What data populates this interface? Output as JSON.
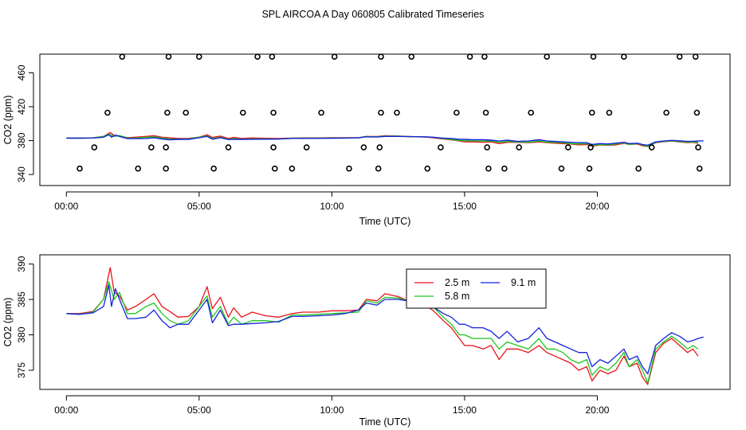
{
  "figure_title": "SPL AIRCOA A  Day 060805  Calibrated Timeseries",
  "chart_data": [
    {
      "type": "line",
      "panel": "top",
      "xlabel": "Time (UTC)",
      "ylabel": "CO2 (ppm)",
      "xlim": [
        -1,
        25
      ],
      "ylim": [
        327,
        482
      ],
      "xticks": [
        {
          "v": 0,
          "label": "00:00"
        },
        {
          "v": 5,
          "label": "05:00"
        },
        {
          "v": 10,
          "label": "10:00"
        },
        {
          "v": 15,
          "label": "15:00"
        },
        {
          "v": 20,
          "label": "20:00"
        }
      ],
      "yticks": [
        {
          "v": 340,
          "label": "340"
        },
        {
          "v": 380,
          "label": "380"
        },
        {
          "v": 420,
          "label": "420"
        },
        {
          "v": 460,
          "label": "460"
        }
      ],
      "points": {
        "marker": "open-circle",
        "x": [
          2.1,
          3.85,
          5.0,
          7.2,
          7.75,
          10.1,
          11.85,
          13.0,
          15.2,
          15.75,
          18.1,
          19.85,
          21.0,
          23.1,
          23.7,
          1.55,
          3.8,
          4.5,
          6.65,
          7.8,
          9.6,
          11.85,
          12.45,
          14.7,
          15.8,
          17.5,
          19.8,
          20.45,
          22.6,
          23.75,
          1.05,
          3.2,
          3.75,
          6.1,
          7.8,
          9.05,
          11.2,
          11.8,
          14.1,
          15.85,
          17.05,
          18.9,
          19.75,
          22.05,
          23.8,
          0.5,
          2.7,
          3.75,
          5.55,
          7.85,
          8.5,
          10.65,
          11.75,
          13.6,
          15.9,
          16.5,
          18.65,
          19.7,
          21.55,
          23.85
        ],
        "y": [
          479,
          479,
          479,
          479,
          479,
          479,
          479,
          479,
          479,
          479,
          479,
          479,
          479,
          479,
          479,
          413,
          413,
          413,
          413,
          413,
          413,
          413,
          413,
          413,
          413,
          413,
          413,
          413,
          413,
          413,
          372,
          372,
          372,
          372,
          372,
          372,
          372,
          372,
          372,
          372,
          372,
          372,
          372,
          372,
          372,
          347,
          347,
          347,
          347,
          347,
          347,
          347,
          347,
          347,
          347,
          347,
          347,
          347,
          347,
          347
        ]
      },
      "series_ref": "same series as bottom panel"
    },
    {
      "type": "line",
      "panel": "bottom",
      "xlabel": "Time (UTC)",
      "ylabel": "CO2 (ppm)",
      "xlim": [
        -1,
        25
      ],
      "ylim": [
        372.3,
        391.3
      ],
      "xticks": [
        {
          "v": 0,
          "label": "00:00"
        },
        {
          "v": 5,
          "label": "05:00"
        },
        {
          "v": 10,
          "label": "10:00"
        },
        {
          "v": 15,
          "label": "15:00"
        },
        {
          "v": 20,
          "label": "20:00"
        }
      ],
      "yticks": [
        {
          "v": 375,
          "label": "375"
        },
        {
          "v": 380,
          "label": "380"
        },
        {
          "v": 385,
          "label": "385"
        },
        {
          "v": 390,
          "label": "390"
        }
      ],
      "legend": {
        "placement": "top-center"
      },
      "series": [
        {
          "name": "2.5 m",
          "color": "#e8141c",
          "x": [
            0,
            0.5,
            1.0,
            1.4,
            1.65,
            1.8,
            2.0,
            2.3,
            2.6,
            3.0,
            3.3,
            3.6,
            3.9,
            4.2,
            4.6,
            5.0,
            5.3,
            5.5,
            5.8,
            6.1,
            6.3,
            6.6,
            7.0,
            7.5,
            8.0,
            8.5,
            8.9,
            9.5,
            10.0,
            10.5,
            11.0,
            11.3,
            11.7,
            12.0,
            12.5,
            13.0,
            13.5,
            13.8,
            14.2,
            14.5,
            14.8,
            15.0,
            15.3,
            15.7,
            16.0,
            16.3,
            16.6,
            17.0,
            17.4,
            17.8,
            18.1,
            18.4,
            18.7,
            19.0,
            19.3,
            19.6,
            19.8,
            20.1,
            20.4,
            20.7,
            21.0,
            21.2,
            21.5,
            21.7,
            21.9,
            22.2,
            22.5,
            22.8,
            23.1,
            23.4,
            23.6,
            23.8
          ],
          "y": [
            383,
            383,
            383.3,
            385,
            389.5,
            386,
            385.5,
            383.5,
            384,
            385,
            385.8,
            384,
            383.3,
            382.5,
            382.6,
            384,
            386.8,
            383.7,
            385.3,
            382.5,
            383.8,
            382.5,
            383.2,
            382.7,
            382.5,
            383.0,
            383.2,
            383.2,
            383.4,
            383.4,
            383.5,
            385,
            384.8,
            385.8,
            385.4,
            384.6,
            384.2,
            383.5,
            382,
            381,
            379.5,
            378.5,
            378.5,
            378,
            378.5,
            376.5,
            378,
            378,
            377.5,
            378.5,
            377.5,
            377,
            376.5,
            376,
            375,
            375.5,
            373.5,
            375,
            374.5,
            375,
            377,
            375.5,
            376,
            374,
            373,
            377.5,
            378.8,
            379.5,
            378.5,
            377.5,
            378,
            377
          ]
        },
        {
          "name": "5.8 m",
          "color": "#1ec81e",
          "x": [
            0,
            0.5,
            1.0,
            1.4,
            1.6,
            1.8,
            2.0,
            2.3,
            2.6,
            3.0,
            3.3,
            3.6,
            3.9,
            4.2,
            4.6,
            5.0,
            5.3,
            5.5,
            5.8,
            6.1,
            6.3,
            6.6,
            7.0,
            7.5,
            8.0,
            8.5,
            8.9,
            9.5,
            10.0,
            10.5,
            11.0,
            11.3,
            11.7,
            12.0,
            12.5,
            13.0,
            13.5,
            13.8,
            14.2,
            14.5,
            14.8,
            15.0,
            15.3,
            15.7,
            16.0,
            16.3,
            16.6,
            17.0,
            17.4,
            17.8,
            18.1,
            18.4,
            18.7,
            19.0,
            19.3,
            19.6,
            19.8,
            20.1,
            20.4,
            20.7,
            21.0,
            21.2,
            21.5,
            21.7,
            21.9,
            22.2,
            22.5,
            22.8,
            23.1,
            23.4,
            23.6,
            23.8
          ],
          "y": [
            383,
            382.9,
            383.2,
            385,
            387.5,
            385,
            386,
            383,
            383,
            384,
            384.5,
            383,
            382,
            381.5,
            382,
            384,
            385.5,
            382.5,
            384,
            381.5,
            382.5,
            381.5,
            382.0,
            382.0,
            381.8,
            382.8,
            382.8,
            382.9,
            383,
            383.1,
            383.2,
            384.8,
            384.5,
            385.3,
            385.2,
            384.6,
            384.4,
            384,
            382.5,
            381.5,
            380,
            380,
            379.5,
            379.5,
            379.5,
            378,
            379,
            378.5,
            378,
            379.5,
            378,
            378,
            377.5,
            376.5,
            376,
            376.5,
            374.3,
            375.5,
            375,
            376,
            377.5,
            375.5,
            376.5,
            375,
            373.2,
            378,
            379,
            379.8,
            379,
            378,
            378.5,
            378
          ]
        },
        {
          "name": "9.1 m",
          "color": "#1422dc",
          "x": [
            0,
            0.5,
            1.0,
            1.4,
            1.6,
            1.7,
            1.85,
            2.0,
            2.3,
            2.6,
            3.0,
            3.3,
            3.6,
            3.9,
            4.2,
            4.6,
            5.0,
            5.3,
            5.5,
            5.8,
            6.1,
            6.3,
            6.6,
            7.0,
            7.5,
            8.0,
            8.5,
            8.9,
            9.5,
            10.0,
            10.5,
            11.0,
            11.3,
            11.7,
            12.0,
            12.5,
            13.0,
            13.5,
            13.8,
            14.2,
            14.5,
            14.8,
            15.0,
            15.3,
            15.7,
            16.0,
            16.3,
            16.6,
            17.0,
            17.4,
            17.8,
            18.1,
            18.4,
            18.7,
            19.0,
            19.3,
            19.6,
            19.8,
            20.1,
            20.4,
            20.7,
            21.0,
            21.2,
            21.5,
            21.7,
            21.9,
            22.2,
            22.5,
            22.8,
            23.1,
            23.4,
            23.6,
            23.8,
            24.0
          ],
          "y": [
            383,
            382.9,
            383.1,
            384,
            387,
            384,
            386.5,
            385,
            382.3,
            382.3,
            382.5,
            383.5,
            382,
            381,
            381.5,
            381.5,
            383.5,
            385,
            381.7,
            383.5,
            381.3,
            381.5,
            381.5,
            381.6,
            381.7,
            381.9,
            382.6,
            382.6,
            382.7,
            382.8,
            383.0,
            383.5,
            384.5,
            384.2,
            385,
            385,
            384.7,
            384.5,
            384,
            383,
            382.5,
            381.5,
            381.5,
            381,
            381,
            380.5,
            379.5,
            380.5,
            379,
            379.5,
            381,
            379.5,
            379,
            378.5,
            378,
            377.5,
            377.5,
            375.5,
            376.5,
            376,
            377,
            378,
            376.5,
            377,
            375.5,
            374.5,
            378.5,
            379.5,
            380.3,
            379.8,
            379,
            379.2,
            379.5,
            379.7
          ]
        }
      ]
    }
  ]
}
